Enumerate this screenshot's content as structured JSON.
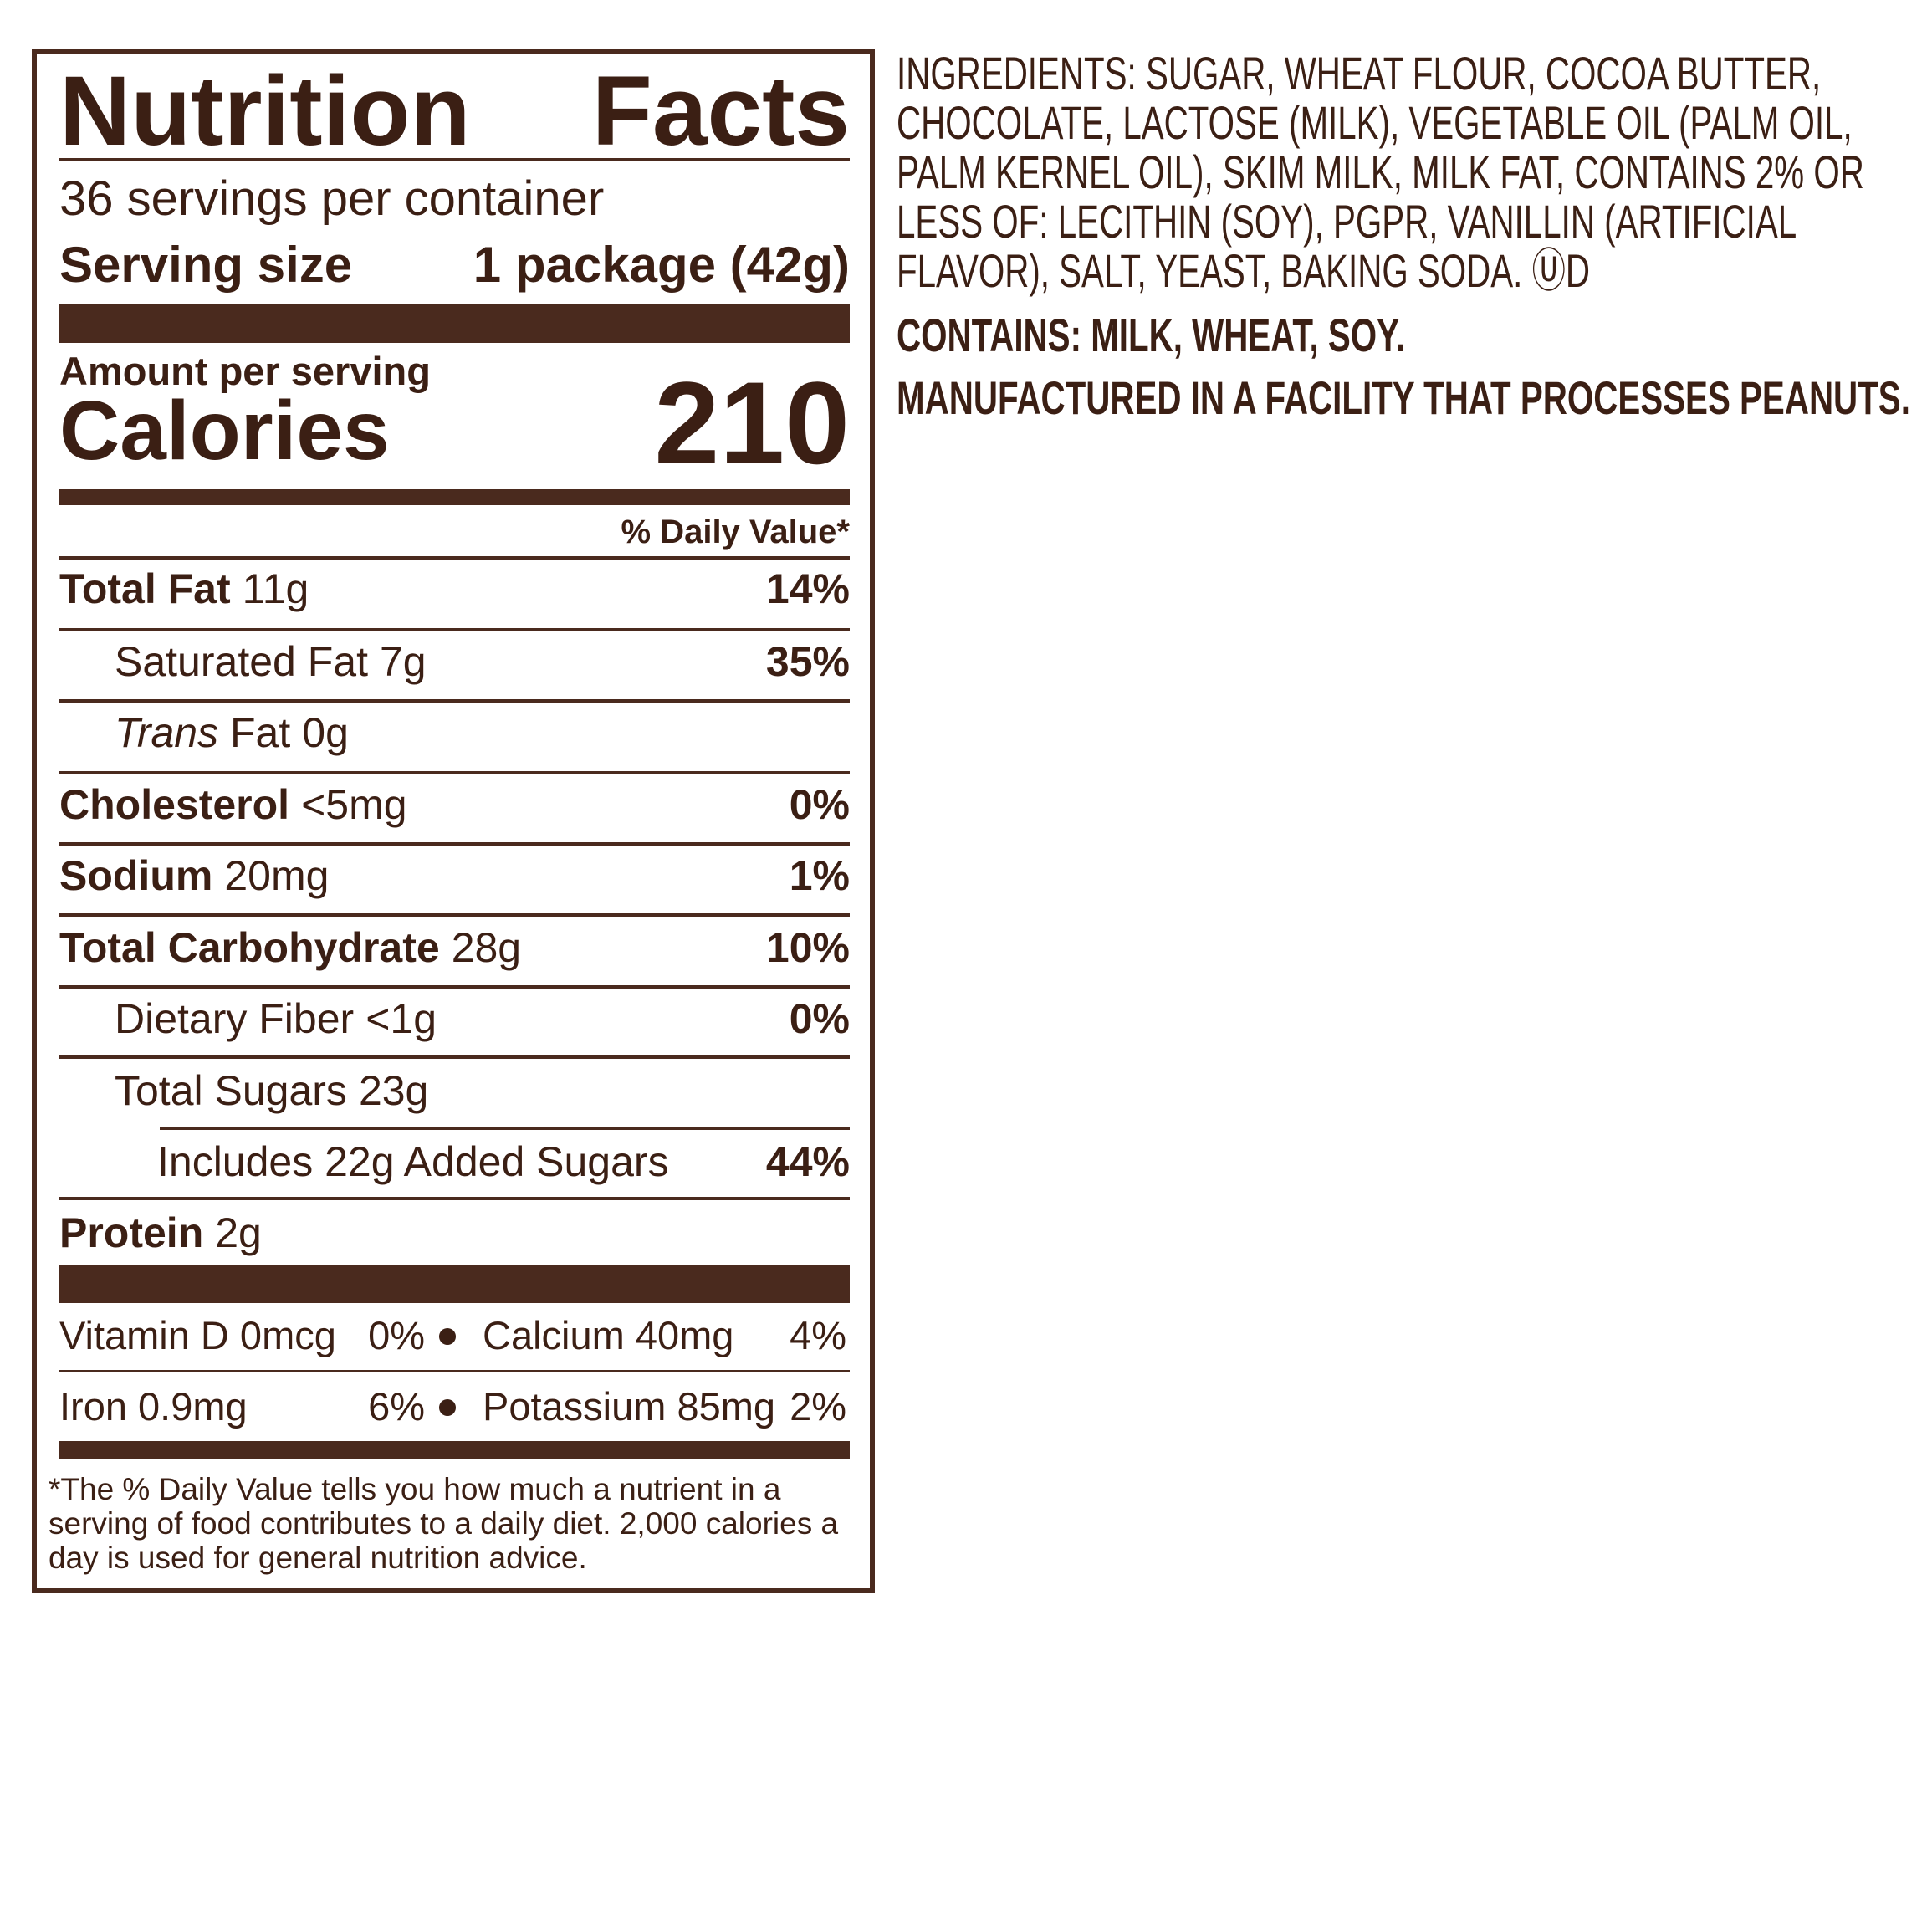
{
  "nutrition_facts": {
    "title": "Nutrition Facts",
    "servings": "36 servings per container",
    "serving_size_label": "Serving size",
    "serving_size_value": "1 package (42g)",
    "amount_per_serving": "Amount per serving",
    "calories_label": "Calories",
    "calories_value": "210",
    "daily_value_header": "% Daily Value*",
    "rows": [
      {
        "name": "Total Fat",
        "amount": "11g",
        "dv": "14%"
      },
      {
        "name": "Saturated Fat",
        "amount": "7g",
        "dv": "35%"
      },
      {
        "name_italic": "Trans",
        "name": "Fat",
        "amount": "0g"
      },
      {
        "name": "Cholesterol",
        "amount": "<5mg",
        "dv": "0%"
      },
      {
        "name": "Sodium",
        "amount": "20mg",
        "dv": "1%"
      },
      {
        "name": "Total Carbohydrate",
        "amount": "28g",
        "dv": "10%"
      },
      {
        "name": "Dietary Fiber",
        "amount": "<1g",
        "dv": "0%"
      },
      {
        "name": "Total Sugars",
        "amount": "23g"
      },
      {
        "name": "Includes 22g Added Sugars",
        "dv": "44%"
      },
      {
        "name": "Protein",
        "amount": "2g"
      }
    ],
    "micronutrients": [
      [
        {
          "name": "Vitamin D 0mcg",
          "dv": "0%"
        },
        {
          "name": "Calcium 40mg",
          "dv": "4%"
        }
      ],
      [
        {
          "name": "Iron 0.9mg",
          "dv": "6%"
        },
        {
          "name": "Potassium 85mg",
          "dv": "2%"
        }
      ]
    ],
    "footnote": "*The % Daily Value tells you how much a nutrient in a serving of food contributes to a daily diet. 2,000 calories a day is used for general nutrition advice."
  },
  "ingredients": {
    "text": "INGREDIENTS: SUGAR, WHEAT FLOUR, COCOA BUTTER, CHOCOLATE, LACTOSE (MILK), VEGETABLE OIL (PALM OIL, PALM KERNEL OIL), SKIM MILK, MILK FAT, CONTAINS 2% OR LESS OF: LECITHIN (SOY), PGPR, VANILLIN (ARTIFICIAL FLAVOR), SALT, YEAST, BAKING SODA.",
    "kosher_mark": "ⓊD",
    "contains": "CONTAINS: MILK, WHEAT, SOY.",
    "facility": "MANUFACTURED IN A FACILITY THAT PROCESSES PEANUTS."
  }
}
